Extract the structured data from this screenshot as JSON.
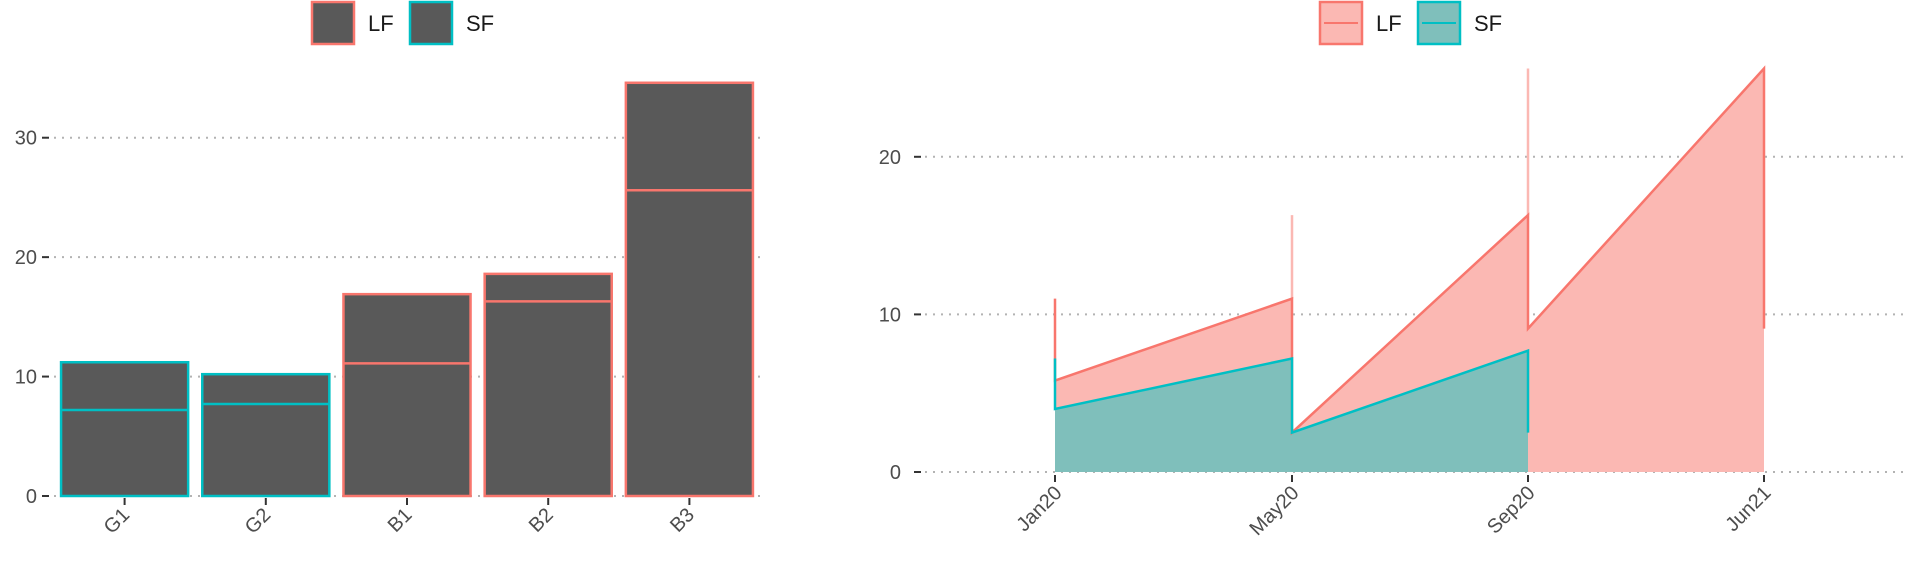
{
  "chart_data": [
    {
      "type": "bar",
      "title": "",
      "xlabel": "",
      "ylabel": "",
      "ylim": [
        0,
        35
      ],
      "yticks": [
        0,
        10,
        20,
        30
      ],
      "grid": true,
      "legend_position": "top",
      "legend": [
        {
          "name": "LF",
          "color": "#F8766D"
        },
        {
          "name": "SF",
          "color": "#00BFC4"
        }
      ],
      "bar_fill": "#595959",
      "categories": [
        "G1",
        "G2",
        "B1",
        "B2",
        "B3"
      ],
      "bars": [
        {
          "category": "G1",
          "group": "SF",
          "total": 11.2,
          "split": 7.2
        },
        {
          "category": "G2",
          "group": "SF",
          "total": 10.2,
          "split": 7.7
        },
        {
          "category": "B1",
          "group": "LF",
          "total": 16.9,
          "split": 11.1
        },
        {
          "category": "B2",
          "group": "LF",
          "total": 18.6,
          "split": 16.3
        },
        {
          "category": "B3",
          "group": "LF",
          "total": 34.6,
          "split": 25.6
        }
      ]
    },
    {
      "type": "area",
      "title": "",
      "xlabel": "",
      "ylabel": "",
      "ylim": [
        0,
        25
      ],
      "yticks": [
        0,
        10,
        20
      ],
      "x_tick_labels": [
        "Jan20",
        "May20",
        "Sep20",
        "Jun21"
      ],
      "grid": true,
      "legend_position": "top",
      "legend": [
        {
          "name": "LF",
          "color": "#F8766D",
          "fill": "#FBB8B3"
        },
        {
          "name": "SF",
          "color": "#00BFC4",
          "fill": "#7FBFBB"
        }
      ],
      "series": [
        {
          "name": "LF",
          "segments": [
            {
              "from": "Jan20",
              "to": "May20",
              "start": 5.8,
              "end": 11.0,
              "start_spike": 11.0,
              "end_spike": 16.3
            },
            {
              "from": "May20",
              "to": "Sep20",
              "start": 2.5,
              "end": 16.3,
              "end_spike": 25.6
            },
            {
              "from": "Sep20",
              "to": "Jun21",
              "start": 9.1,
              "end": 25.6,
              "end_drop": 9.1
            }
          ]
        },
        {
          "name": "SF",
          "segments": [
            {
              "from": "Jan20",
              "to": "May20",
              "start": 4.0,
              "end": 7.2,
              "start_spike": 7.2
            },
            {
              "from": "May20",
              "to": "Sep20",
              "start": 2.5,
              "end": 7.7
            }
          ]
        }
      ]
    }
  ]
}
